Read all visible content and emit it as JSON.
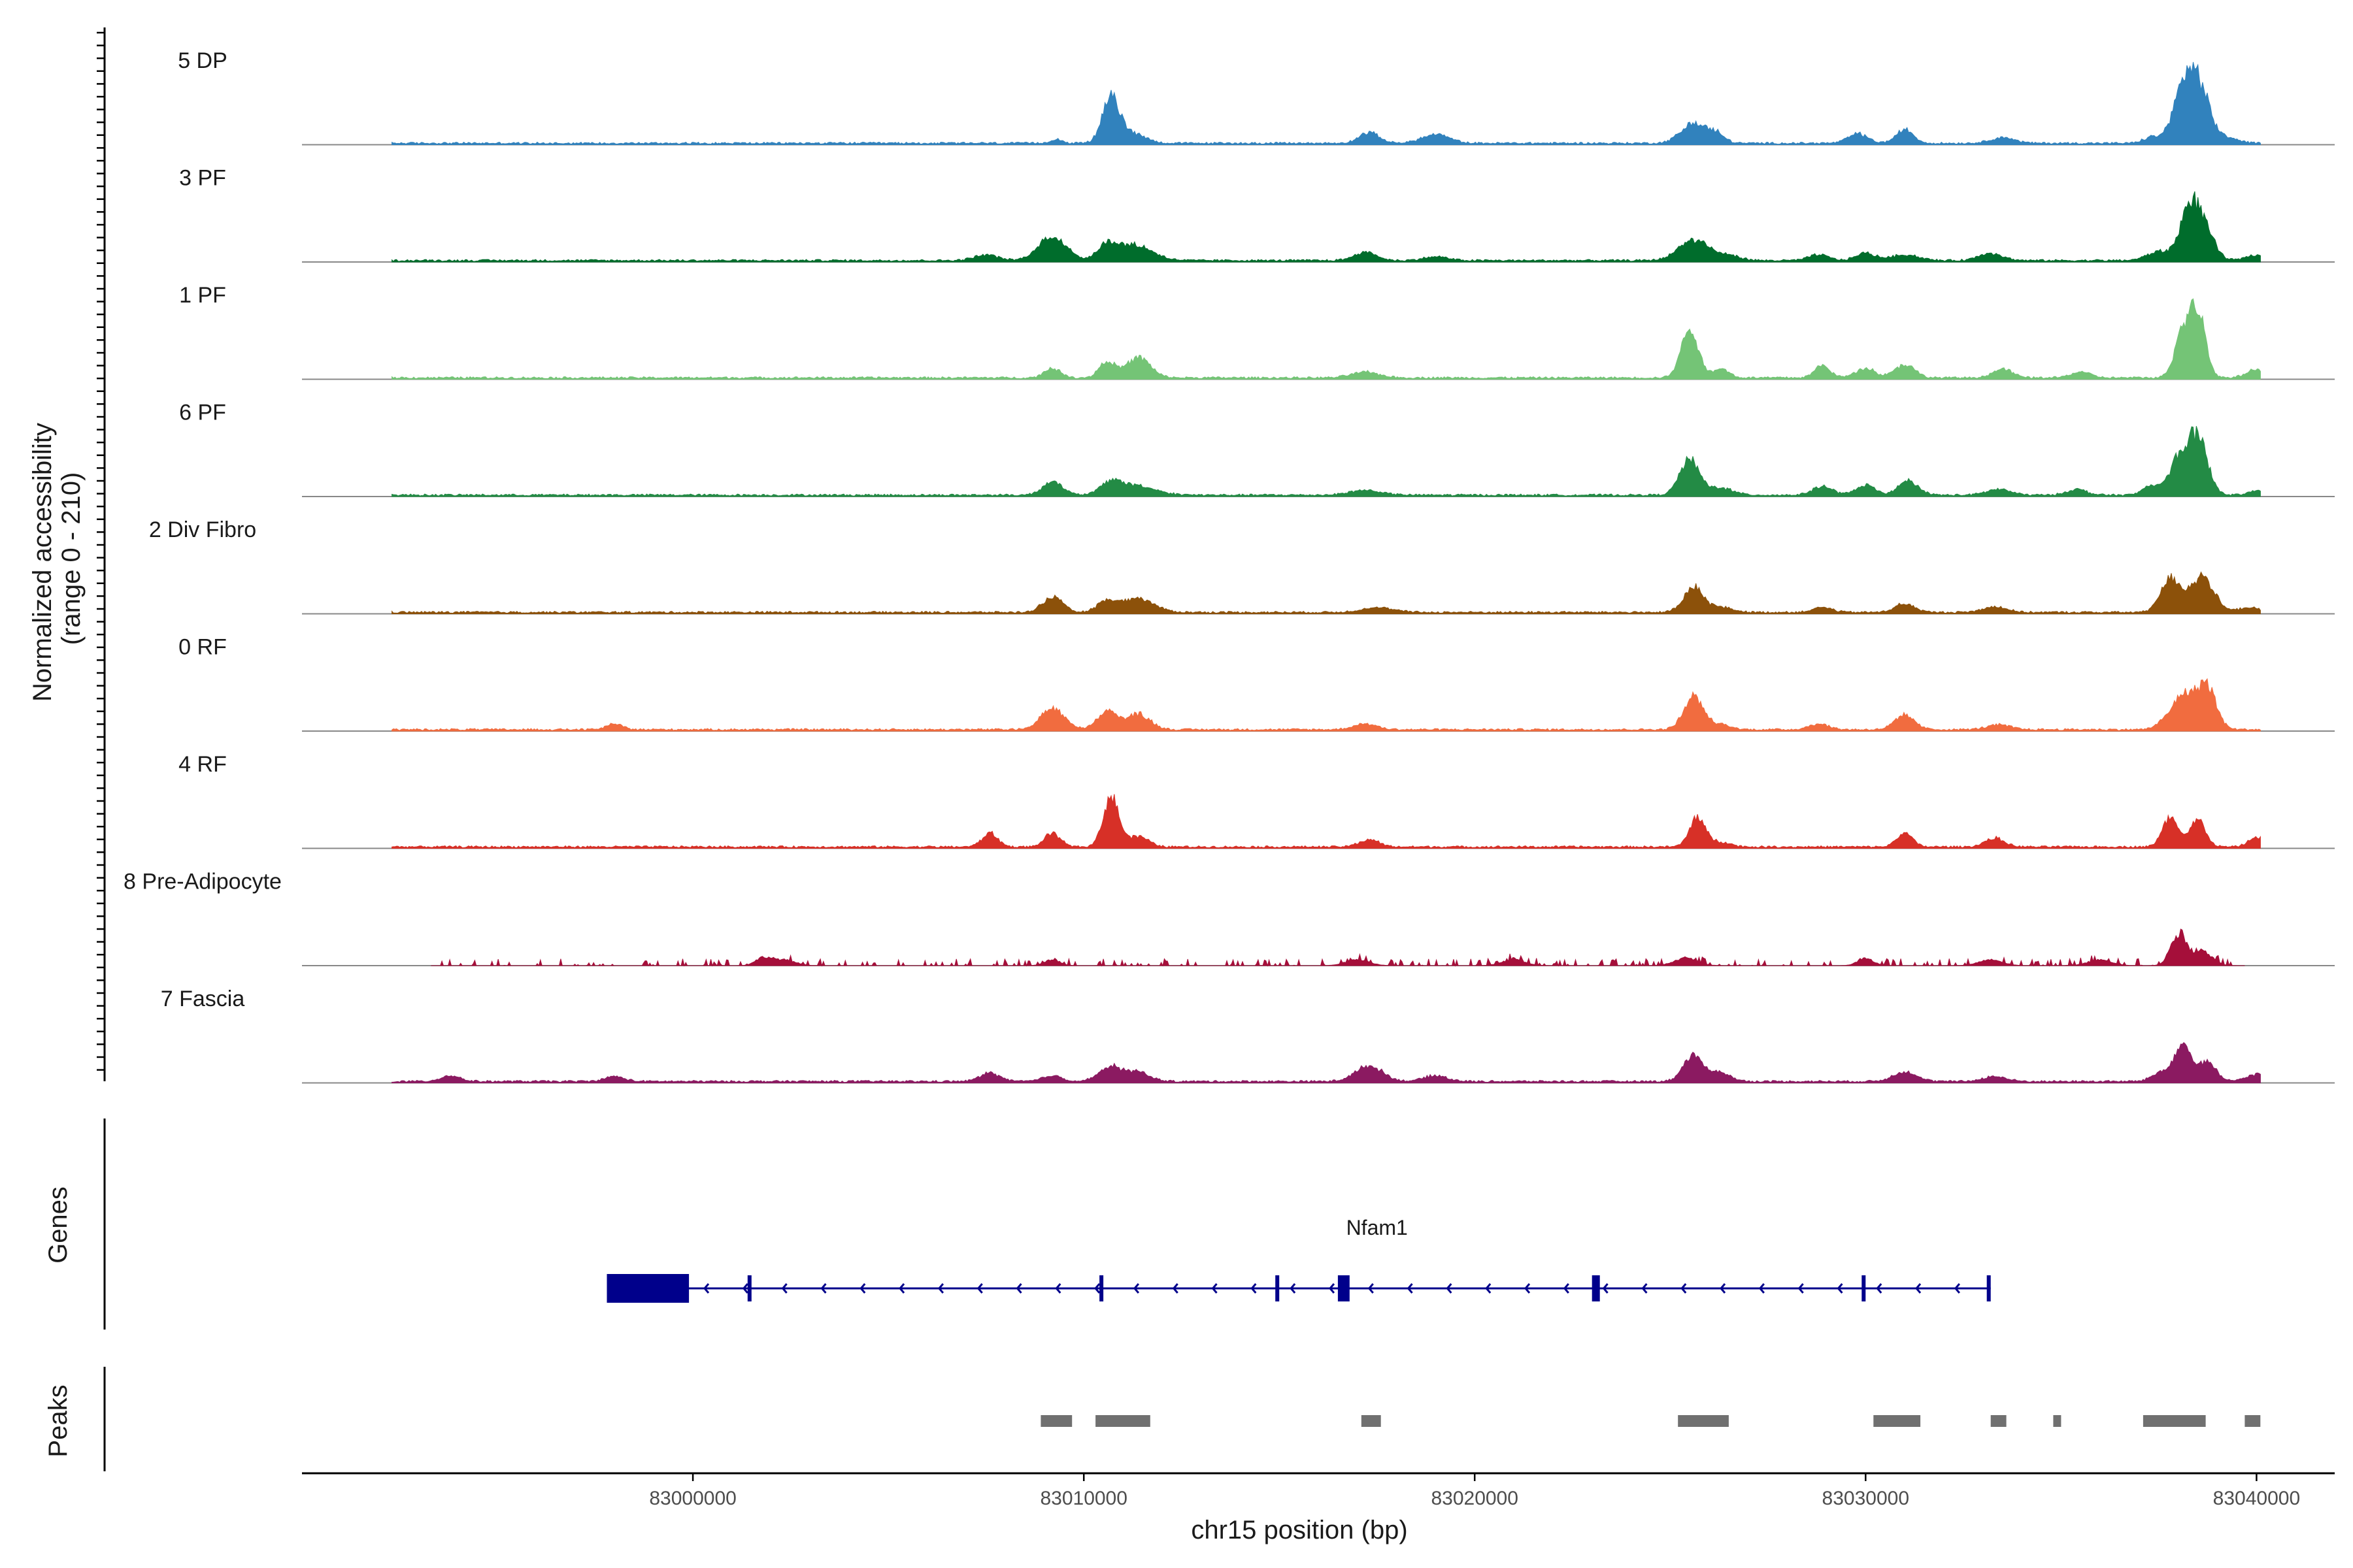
{
  "chart_data": {
    "type": "coverage",
    "chromosome": "chr15",
    "xlabel": "chr15 position (bp)",
    "ylabel_line1": "Normalized accessibility",
    "ylabel_line2": "(range 0 - 210)",
    "y_range": [
      0,
      210
    ],
    "x_range": [
      82990000,
      83042000
    ],
    "x_ticks": [
      {
        "value": 83000000,
        "label": "83000000"
      },
      {
        "value": 83010000,
        "label": "83010000"
      },
      {
        "value": 83020000,
        "label": "83020000"
      },
      {
        "value": 83030000,
        "label": "83030000"
      },
      {
        "value": 83040000,
        "label": "83040000"
      }
    ],
    "background_level": 4,
    "tracks": [
      {
        "name": "5 DP",
        "color": "#3182bd",
        "start": 82992300,
        "end": 83040100,
        "peaks": [
          [
            83009300,
            8,
            150
          ],
          [
            83010700,
            95,
            220
          ],
          [
            83011300,
            20,
            300
          ],
          [
            83017300,
            22,
            260
          ],
          [
            83019000,
            18,
            350
          ],
          [
            83025600,
            42,
            320
          ],
          [
            83026200,
            18,
            200
          ],
          [
            83029800,
            20,
            250
          ],
          [
            83031000,
            28,
            220
          ],
          [
            83033500,
            12,
            300
          ],
          [
            83037300,
            12,
            200
          ],
          [
            83038200,
            130,
            300
          ],
          [
            83038600,
            70,
            250
          ],
          [
            83039200,
            12,
            300
          ]
        ]
      },
      {
        "name": "3 PF",
        "color": "#006d2c",
        "start": 82992300,
        "end": 83040100,
        "peaks": [
          [
            83007500,
            12,
            300
          ],
          [
            83009200,
            50,
            350
          ],
          [
            83010600,
            30,
            250
          ],
          [
            83011300,
            32,
            450
          ],
          [
            83017200,
            18,
            280
          ],
          [
            83019000,
            8,
            300
          ],
          [
            83025600,
            42,
            380
          ],
          [
            83026500,
            10,
            300
          ],
          [
            83028800,
            12,
            250
          ],
          [
            83030000,
            15,
            250
          ],
          [
            83031000,
            12,
            350
          ],
          [
            83033200,
            15,
            300
          ],
          [
            83037500,
            18,
            300
          ],
          [
            83038300,
            110,
            250
          ],
          [
            83038700,
            50,
            250
          ],
          [
            83040000,
            12,
            250
          ]
        ]
      },
      {
        "name": "1 PF",
        "color": "#74c476",
        "start": 82992300,
        "end": 83040100,
        "peaks": [
          [
            83009200,
            20,
            200
          ],
          [
            83010600,
            35,
            200
          ],
          [
            83011400,
            42,
            300
          ],
          [
            83017200,
            12,
            350
          ],
          [
            83025500,
            100,
            220
          ],
          [
            83026300,
            20,
            200
          ],
          [
            83028900,
            25,
            200
          ],
          [
            83030000,
            20,
            250
          ],
          [
            83031000,
            28,
            250
          ],
          [
            83033500,
            18,
            250
          ],
          [
            83035500,
            12,
            250
          ],
          [
            83038100,
            90,
            200
          ],
          [
            83038500,
            135,
            200
          ],
          [
            83040000,
            18,
            250
          ]
        ]
      },
      {
        "name": "6 PF",
        "color": "#238b45",
        "start": 82992300,
        "end": 83040100,
        "peaks": [
          [
            83009200,
            28,
            250
          ],
          [
            83010700,
            22,
            250
          ],
          [
            83011300,
            20,
            500
          ],
          [
            83017200,
            10,
            400
          ],
          [
            83025500,
            75,
            250
          ],
          [
            83026300,
            15,
            300
          ],
          [
            83028900,
            18,
            250
          ],
          [
            83030000,
            20,
            250
          ],
          [
            83031100,
            30,
            250
          ],
          [
            83033400,
            12,
            300
          ],
          [
            83035400,
            12,
            250
          ],
          [
            83037300,
            20,
            200
          ],
          [
            83038000,
            70,
            250
          ],
          [
            83038500,
            115,
            250
          ],
          [
            83040100,
            10,
            250
          ]
        ]
      },
      {
        "name": "2 Div Fibro",
        "color": "#8c510a",
        "start": 82992300,
        "end": 83040100,
        "peaks": [
          [
            83009200,
            32,
            250
          ],
          [
            83010600,
            22,
            250
          ],
          [
            83011400,
            28,
            400
          ],
          [
            83017500,
            10,
            400
          ],
          [
            83025600,
            52,
            250
          ],
          [
            83026300,
            10,
            300
          ],
          [
            83028900,
            10,
            250
          ],
          [
            83031000,
            18,
            250
          ],
          [
            83033300,
            12,
            300
          ],
          [
            83037800,
            70,
            250
          ],
          [
            83038600,
            75,
            300
          ],
          [
            83039800,
            10,
            250
          ]
        ]
      },
      {
        "name": "0 RF",
        "color": "#f16c3f",
        "start": 82992300,
        "end": 83040100,
        "peaks": [
          [
            82998000,
            12,
            200
          ],
          [
            83009200,
            45,
            300
          ],
          [
            83010600,
            38,
            250
          ],
          [
            83011400,
            32,
            300
          ],
          [
            83017200,
            12,
            300
          ],
          [
            83025600,
            70,
            250
          ],
          [
            83026300,
            10,
            250
          ],
          [
            83028800,
            12,
            250
          ],
          [
            83031000,
            30,
            250
          ],
          [
            83033400,
            10,
            300
          ],
          [
            83037600,
            12,
            200
          ],
          [
            83038100,
            70,
            250
          ],
          [
            83038700,
            95,
            250
          ]
        ]
      },
      {
        "name": "4 RF",
        "color": "#d73027",
        "start": 82992300,
        "end": 83040100,
        "peaks": [
          [
            83007600,
            28,
            200
          ],
          [
            83009200,
            28,
            200
          ],
          [
            83010700,
            105,
            200
          ],
          [
            83011400,
            22,
            250
          ],
          [
            83017300,
            15,
            250
          ],
          [
            83025700,
            62,
            200
          ],
          [
            83026300,
            10,
            250
          ],
          [
            83031000,
            28,
            200
          ],
          [
            83033300,
            18,
            250
          ],
          [
            83037800,
            60,
            200
          ],
          [
            83038500,
            55,
            200
          ],
          [
            83040000,
            20,
            200
          ]
        ]
      },
      {
        "name": "8 Pre-Adipocyte",
        "color": "#a50f3a",
        "start": 82993300,
        "end": 83039700,
        "peaks": [
          [
            83001800,
            15,
            200
          ],
          [
            83002300,
            12,
            300
          ],
          [
            83009200,
            12,
            200
          ],
          [
            83017000,
            12,
            300
          ],
          [
            83021000,
            12,
            300
          ],
          [
            83025400,
            15,
            300
          ],
          [
            83030000,
            15,
            200
          ],
          [
            83033200,
            12,
            300
          ],
          [
            83036000,
            12,
            300
          ],
          [
            83038000,
            62,
            200
          ],
          [
            83038600,
            30,
            250
          ]
        ]
      },
      {
        "name": "7 Fascia",
        "color": "#8b1a61",
        "start": 82992300,
        "end": 83040100,
        "peaks": [
          [
            82993800,
            12,
            250
          ],
          [
            82998000,
            10,
            250
          ],
          [
            83007600,
            18,
            250
          ],
          [
            83009200,
            12,
            250
          ],
          [
            83010700,
            30,
            300
          ],
          [
            83011400,
            18,
            300
          ],
          [
            83017300,
            32,
            350
          ],
          [
            83019000,
            12,
            300
          ],
          [
            83025600,
            55,
            250
          ],
          [
            83026300,
            18,
            250
          ],
          [
            83031000,
            20,
            300
          ],
          [
            83033300,
            10,
            300
          ],
          [
            83037600,
            20,
            250
          ],
          [
            83038100,
            75,
            200
          ],
          [
            83038700,
            40,
            250
          ],
          [
            83040000,
            15,
            250
          ]
        ]
      }
    ],
    "genes_track_label": "Genes",
    "gene": {
      "name": "Nfam1",
      "strand": "-",
      "start": 82997800,
      "end": 83033200,
      "color": "#00008b",
      "exons": [
        [
          82997800,
          82999900
        ],
        [
          83001400,
          83001500
        ],
        [
          83010400,
          83010500
        ],
        [
          83014900,
          83015000
        ],
        [
          83016500,
          83016800
        ],
        [
          83023000,
          83023200
        ],
        [
          83029900,
          83030000
        ],
        [
          83033100,
          83033200
        ]
      ]
    },
    "peaks_track_label": "Peaks",
    "peak_regions": [
      [
        83008900,
        83009700
      ],
      [
        83010300,
        83011700
      ],
      [
        83017100,
        83017600
      ],
      [
        83025200,
        83026500
      ],
      [
        83030200,
        83031400
      ],
      [
        83033200,
        83033600
      ],
      [
        83034800,
        83035000
      ],
      [
        83037100,
        83038700
      ],
      [
        83039700,
        83040100
      ]
    ],
    "peak_color": "#707070"
  }
}
